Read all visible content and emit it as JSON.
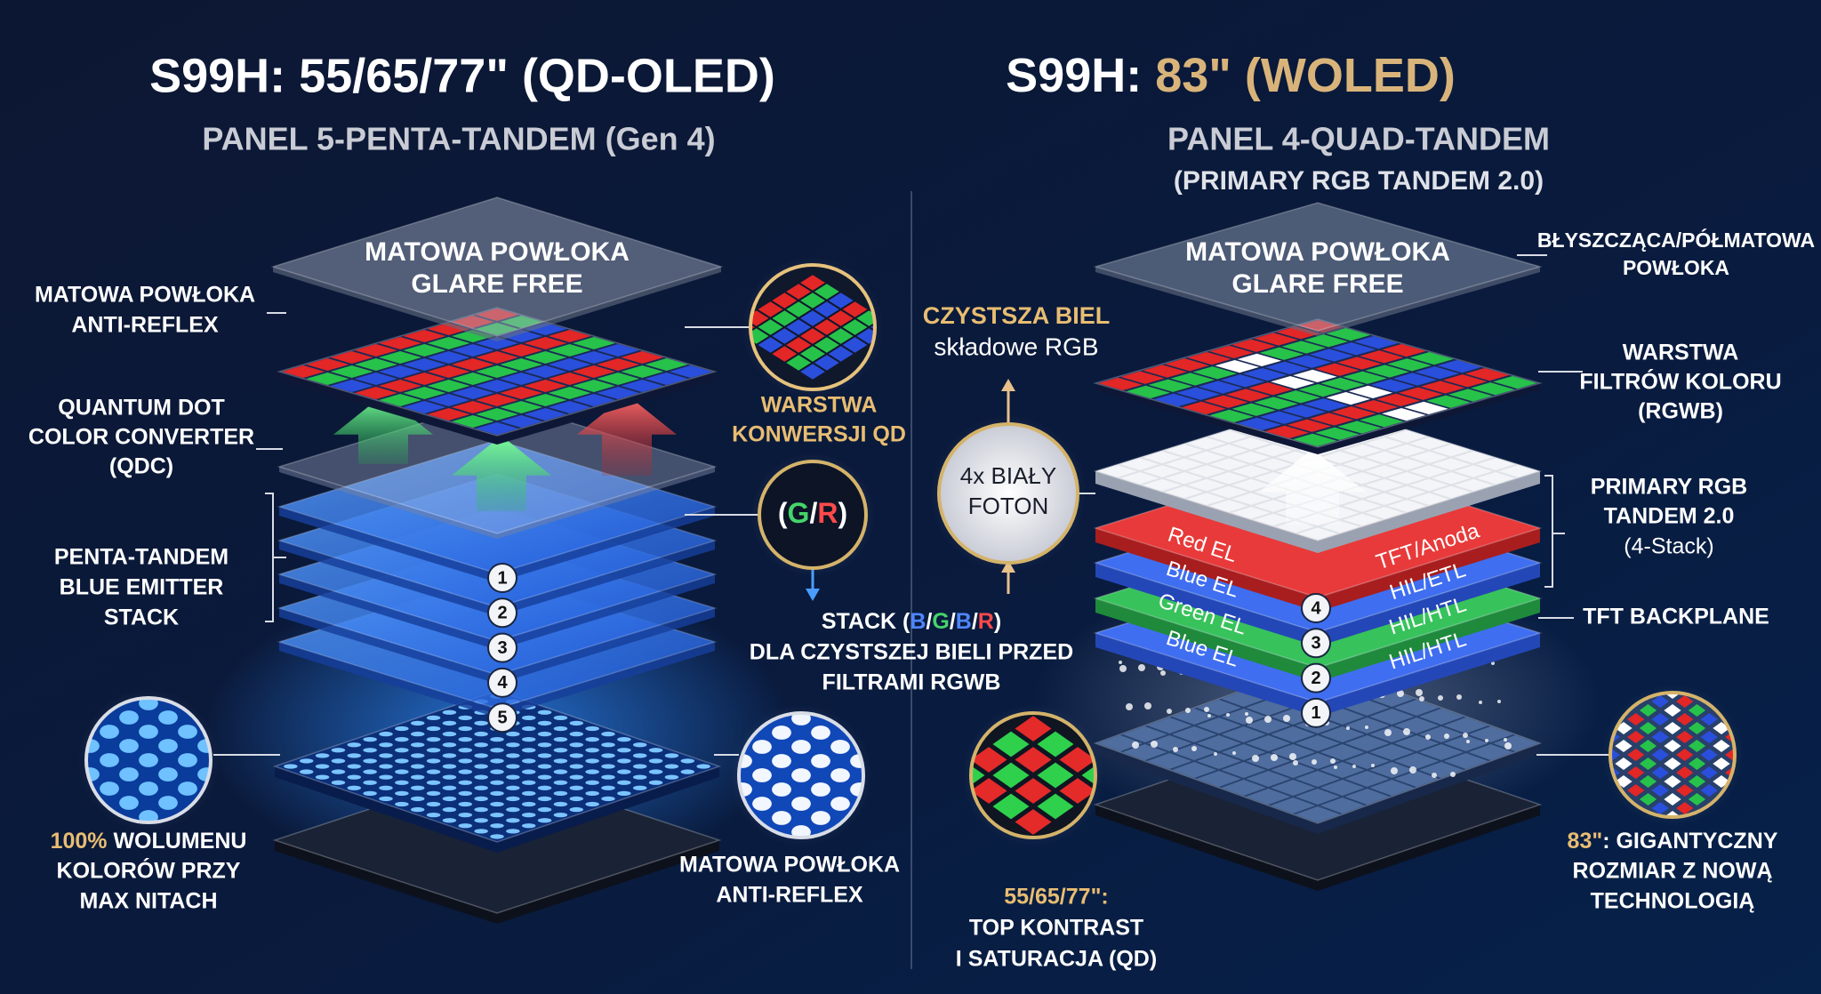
{
  "left": {
    "title": "S99H: 55/65/77\" (QD-OLED)",
    "subtitle": "PANEL 5-PENTA-TANDEM (Gen 4)",
    "top_layer": [
      "MATOWA POWŁOKA",
      "GLARE FREE"
    ],
    "anti_reflex_top": [
      "MATOWA POWŁOKA",
      "ANTI-REFLEX"
    ],
    "qdc": [
      "QUANTUM DOT",
      "COLOR CONVERTER",
      "(QDC)"
    ],
    "emitter": [
      "PENTA-TANDEM",
      "BLUE EMITTER",
      "STACK"
    ],
    "volume": {
      "highlight": "100%",
      "rest": " WOLUMENU",
      "lines": [
        "KOLORÓW PRZY",
        "MAX NITACH"
      ]
    },
    "qd_layer": [
      "WARSTWA",
      "KONWERSJI QD"
    ],
    "gr": [
      "(",
      "G",
      "/",
      "R",
      ")"
    ],
    "stack_numbers": [
      1,
      2,
      3,
      4,
      5
    ],
    "anti_reflex_bottom": [
      "MATOWA POWŁOKA",
      "ANTI-REFLEX"
    ]
  },
  "middle": {
    "stack": [
      "STACK (",
      "B",
      "/",
      "G",
      "/",
      "B",
      "/",
      "R",
      ")"
    ],
    "lines": [
      "DLA CZYSTSZEJ BIELI PRZED",
      "FILTRAMI RGWB"
    ]
  },
  "right": {
    "title_lead": "S99H: ",
    "title_highlight": "83\" (WOLED)",
    "subtitle": "PANEL 4-QUAD-TANDEM",
    "subtitle2": "(PRIMARY RGB TANDEM 2.0)",
    "top_layer": [
      "MATOWA POWŁOKA",
      "GLARE FREE"
    ],
    "gloss": [
      "BŁYSZCZĄCA/PÓŁMATOWA",
      "POWŁOKA"
    ],
    "cleaner_white": {
      "highlight": "CZYSTSZA BIEL",
      "sub": "składowe RGB"
    },
    "photon": [
      "4x BIAŁY",
      "FOTON"
    ],
    "filters": [
      "WARSTWA",
      "FILTRÓW KOLORU",
      "(RGWB)"
    ],
    "tandem": [
      "PRIMARY RGB",
      "TANDEM 2.0",
      "(4-Stack)"
    ],
    "backplane": "TFT BACKPLANE",
    "layers": [
      {
        "left": "Red EL",
        "right": "TFT/Anoda",
        "number": 4
      },
      {
        "left": "Blue EL",
        "right": "HIL/ETL",
        "number": 3
      },
      {
        "left": "Green EL",
        "right": "HIL/HTL",
        "number": 2
      },
      {
        "left": "Blue EL",
        "right": "HIL/HTL",
        "number": 1
      }
    ],
    "qd_note": {
      "highlight": "55/65/77\":",
      "lines": [
        "TOP KONTRAST",
        "I SATURACJA (QD)"
      ]
    },
    "size_note": {
      "highlight": "83\"",
      "rest": ": GIGANTYCZNY",
      "lines": [
        "ROZMIAR Z NOWĄ",
        "TECHNOLOGIĄ"
      ]
    }
  }
}
